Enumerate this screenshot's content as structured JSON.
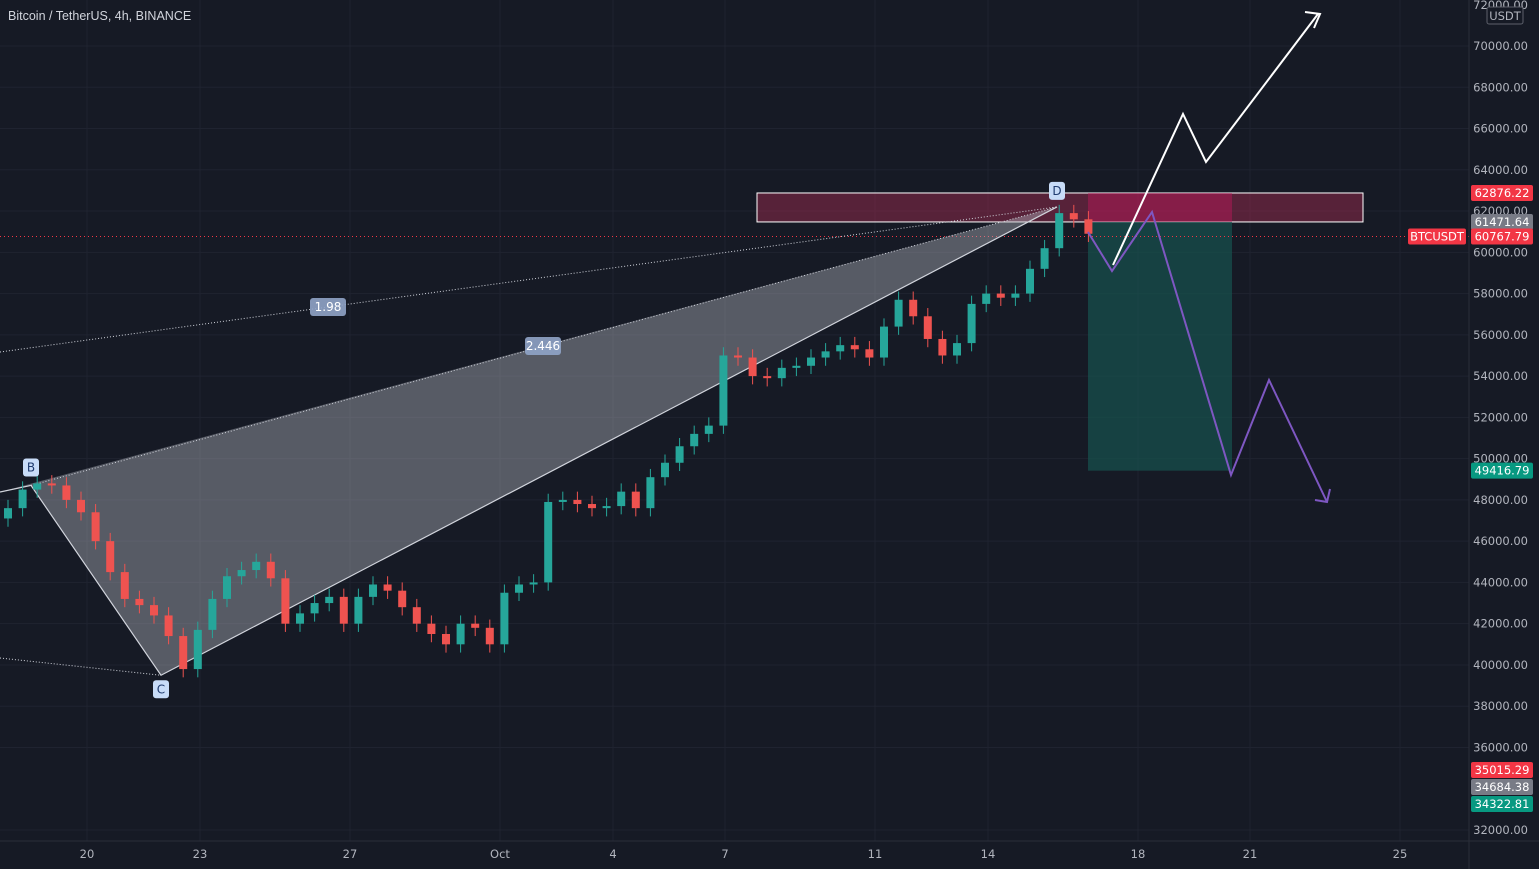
{
  "header": {
    "symbol_title": "Bitcoin / TetherUS, 4h, BINANCE"
  },
  "price_axis": {
    "currency": "USDT",
    "labels": [
      "72000.00",
      "70000.00",
      "68000.00",
      "66000.00",
      "64000.00",
      "62000.00",
      "60000.00",
      "58000.00",
      "56000.00",
      "54000.00",
      "52000.00",
      "50000.00",
      "48000.00",
      "46000.00",
      "44000.00",
      "42000.00",
      "40000.00",
      "38000.00",
      "36000.00",
      "32000.00"
    ]
  },
  "price_tags": [
    {
      "name": "upper-zone-top",
      "value": "62876.22",
      "price": 62876.22,
      "color": "#f23645"
    },
    {
      "name": "upper-zone-bottom",
      "value": "61471.64",
      "price": 61471.64,
      "color": "#787b86"
    },
    {
      "name": "last-price",
      "value": "60767.79",
      "price": 60767.79,
      "color": "#f23645",
      "symbol": "BTCUSDT"
    },
    {
      "name": "target",
      "value": "49416.79",
      "price": 49416.79,
      "color": "#089981"
    },
    {
      "name": "low-1",
      "value": "35015.29",
      "price": 35015.29,
      "color": "#f23645"
    },
    {
      "name": "low-2",
      "value": "34684.38",
      "price": 34684.38,
      "color": "#787b86"
    },
    {
      "name": "low-3",
      "value": "34322.81",
      "price": 34322.81,
      "color": "#089981"
    }
  ],
  "time_axis": {
    "labels": [
      "20",
      "23",
      "27",
      "Oct",
      "4",
      "7",
      "11",
      "14",
      "18",
      "21",
      "25"
    ]
  },
  "harmonic": {
    "points": [
      {
        "label": "B",
        "price": 48700
      },
      {
        "label": "C",
        "price": 39500
      },
      {
        "label": "D",
        "price": 62200
      }
    ],
    "ratios": [
      "1.98",
      "2.446"
    ]
  },
  "colors": {
    "background": "#161a25",
    "up": "#26a69a",
    "down": "#ef5350",
    "pattern": "#9598a1",
    "projection": "#7e57c2",
    "zone": "#8e2a4a",
    "target_zone": "#17524e"
  },
  "chart_data": {
    "type": "candlestick",
    "title": "Bitcoin / TetherUS, 4h, BINANCE",
    "xlabel": "",
    "ylabel": "",
    "x_ticks": [
      "20",
      "23",
      "27",
      "Oct",
      "4",
      "7",
      "11",
      "14",
      "18",
      "21",
      "25"
    ],
    "ylim": [
      31500,
      72000
    ],
    "last_price": 60767.79,
    "grid": true,
    "candles_close_approx": [
      [
        0,
        47600
      ],
      [
        1,
        48500
      ],
      [
        2,
        48800
      ],
      [
        3,
        48700
      ],
      [
        4,
        48000
      ],
      [
        5,
        47400
      ],
      [
        6,
        46000
      ],
      [
        7,
        44500
      ],
      [
        8,
        43200
      ],
      [
        9,
        42900
      ],
      [
        10,
        42400
      ],
      [
        11,
        41400
      ],
      [
        12,
        39800
      ],
      [
        13,
        41700
      ],
      [
        14,
        43200
      ],
      [
        15,
        44300
      ],
      [
        16,
        44600
      ],
      [
        17,
        45000
      ],
      [
        18,
        44200
      ],
      [
        19,
        42000
      ],
      [
        20,
        42500
      ],
      [
        21,
        43000
      ],
      [
        22,
        43300
      ],
      [
        23,
        42000
      ],
      [
        24,
        43300
      ],
      [
        25,
        43900
      ],
      [
        26,
        43600
      ],
      [
        27,
        42800
      ],
      [
        28,
        42000
      ],
      [
        29,
        41500
      ],
      [
        30,
        41000
      ],
      [
        31,
        42000
      ],
      [
        32,
        41800
      ],
      [
        33,
        41000
      ],
      [
        34,
        43500
      ],
      [
        35,
        43900
      ],
      [
        36,
        44000
      ],
      [
        37,
        47900
      ],
      [
        38,
        48000
      ],
      [
        39,
        47800
      ],
      [
        40,
        47600
      ],
      [
        41,
        47700
      ],
      [
        42,
        48400
      ],
      [
        43,
        47600
      ],
      [
        44,
        49100
      ],
      [
        45,
        49800
      ],
      [
        46,
        50600
      ],
      [
        47,
        51200
      ],
      [
        48,
        51600
      ],
      [
        49,
        55000
      ],
      [
        50,
        54900
      ],
      [
        51,
        54000
      ],
      [
        52,
        53900
      ],
      [
        53,
        54400
      ],
      [
        54,
        54500
      ],
      [
        55,
        54900
      ],
      [
        56,
        55200
      ],
      [
        57,
        55500
      ],
      [
        58,
        55300
      ],
      [
        59,
        54900
      ],
      [
        60,
        56400
      ],
      [
        61,
        57700
      ],
      [
        62,
        56900
      ],
      [
        63,
        55800
      ],
      [
        64,
        55000
      ],
      [
        65,
        55600
      ],
      [
        66,
        57500
      ],
      [
        67,
        58000
      ],
      [
        68,
        57800
      ],
      [
        69,
        58000
      ],
      [
        70,
        59200
      ],
      [
        71,
        60200
      ],
      [
        72,
        61900
      ],
      [
        73,
        61600
      ],
      [
        74,
        60900
      ]
    ],
    "zones": [
      {
        "name": "sell-zone",
        "from": 61471.64,
        "to": 62876.22
      },
      {
        "name": "target-zone",
        "from": 49416.79,
        "to": 61471.64
      }
    ],
    "projections": [
      {
        "name": "bullish-path",
        "direction": "up"
      },
      {
        "name": "bearish-path",
        "direction": "down"
      }
    ]
  }
}
